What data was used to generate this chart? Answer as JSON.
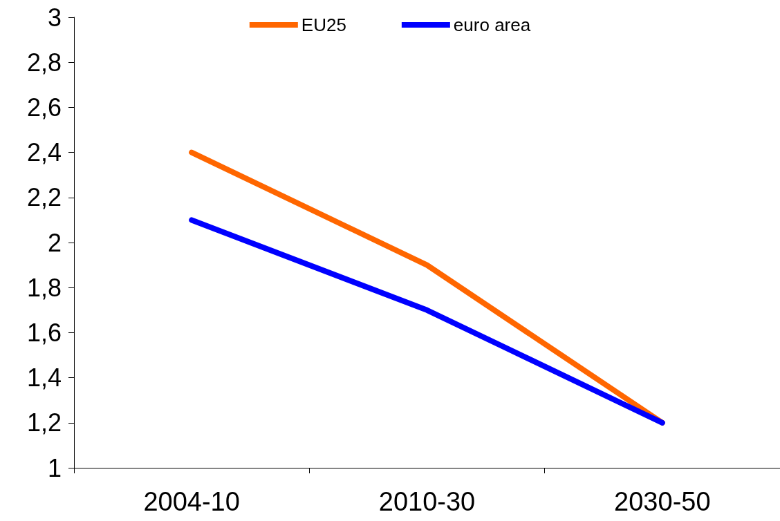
{
  "chart_data": {
    "type": "line",
    "categories": [
      "2004-10",
      "2010-30",
      "2030-50"
    ],
    "series": [
      {
        "name": "EU25",
        "color": "#ff6600",
        "values": [
          2.4,
          1.9,
          1.2
        ]
      },
      {
        "name": "euro area",
        "color": "#0000ff",
        "values": [
          2.1,
          1.7,
          1.2
        ]
      }
    ],
    "ylim": [
      1,
      3
    ],
    "yticks": [
      1,
      {
        "value": 1.2,
        "label": "1,2"
      },
      {
        "value": 1.4,
        "label": "1,4"
      },
      {
        "value": 1.6,
        "label": "1,6"
      },
      {
        "value": 1.8,
        "label": "1,8"
      },
      2,
      {
        "value": 2.2,
        "label": "2,2"
      },
      {
        "value": 2.4,
        "label": "2,4"
      },
      {
        "value": 2.6,
        "label": "2,6"
      },
      {
        "value": 2.8,
        "label": "2,8"
      },
      3
    ],
    "grid": false,
    "legend": "top",
    "marker": "none",
    "line_style": "solid"
  }
}
